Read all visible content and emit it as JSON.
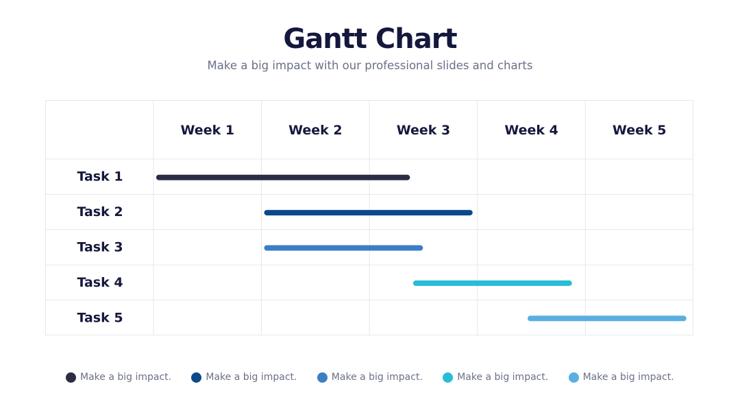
{
  "header": {
    "title": "Gantt Chart",
    "subtitle": "Make a big impact with our professional slides and charts"
  },
  "chart_data": {
    "type": "gantt",
    "columns": [
      "Week 1",
      "Week 2",
      "Week 3",
      "Week 4",
      "Week 5"
    ],
    "tasks": [
      {
        "label": "Task 1",
        "start": 0.05,
        "end": 2.35,
        "color": "#2b2d45"
      },
      {
        "label": "Task 2",
        "start": 1.05,
        "end": 2.93,
        "color": "#0b4a8a"
      },
      {
        "label": "Task 3",
        "start": 1.05,
        "end": 2.47,
        "color": "#3a7ec4"
      },
      {
        "label": "Task 4",
        "start": 2.43,
        "end": 3.85,
        "color": "#29bcd6"
      },
      {
        "label": "Task 5",
        "start": 3.49,
        "end": 4.91,
        "color": "#5aafe0"
      }
    ],
    "grid": true
  },
  "legend": [
    {
      "label": "Make a big impact.",
      "color": "#2b2d45"
    },
    {
      "label": "Make a big impact.",
      "color": "#0b4a8a"
    },
    {
      "label": "Make a big impact.",
      "color": "#3a7ec4"
    },
    {
      "label": "Make a big impact.",
      "color": "#29bcd6"
    },
    {
      "label": "Make a big impact.",
      "color": "#5aafe0"
    }
  ]
}
